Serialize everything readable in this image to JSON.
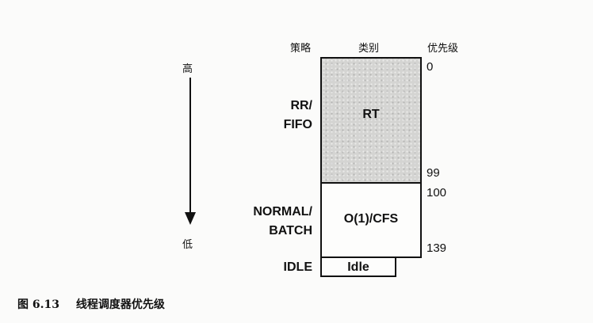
{
  "headers": {
    "policy": "策略",
    "class": "类别",
    "priority": "优先级"
  },
  "arrow": {
    "high": "高",
    "low": "低"
  },
  "policies": {
    "rr": "RR/",
    "fifo": "FIFO",
    "normal": "NORMAL/",
    "batch": "BATCH",
    "idle": "IDLE"
  },
  "classes": {
    "rt": "RT",
    "cfs": "O(1)/CFS",
    "idle": "Idle"
  },
  "priorities": {
    "p0": "0",
    "p99": "99",
    "p100": "100",
    "p139": "139"
  },
  "caption": {
    "number": "图 6.13",
    "title": "线程调度器优先级"
  },
  "colors": {
    "rt_fill": "#d4d4d2",
    "line": "#111111"
  }
}
